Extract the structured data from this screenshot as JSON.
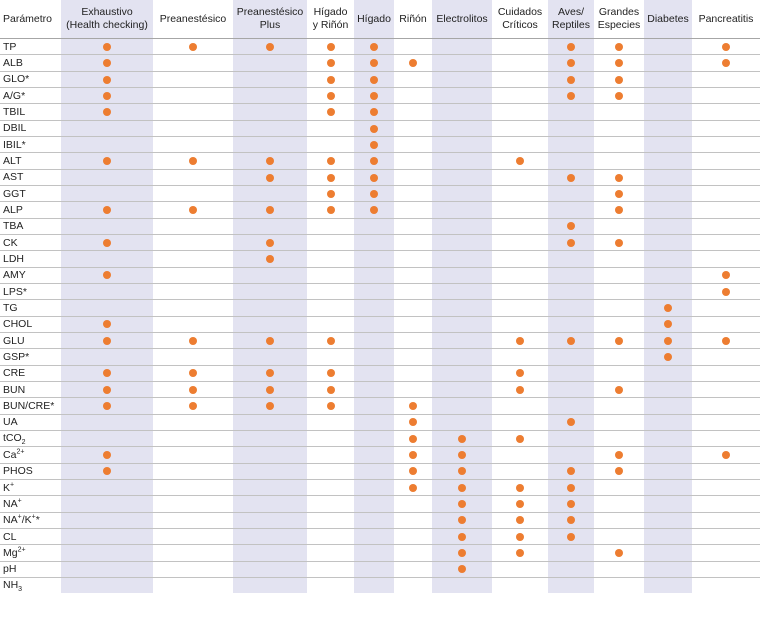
{
  "accent_color": "#ed7d31",
  "shade_color": "#e3e3f1",
  "row_header": "Parámetro",
  "columns": [
    {
      "id": "exhaustivo",
      "lines": [
        "Exhaustivo",
        "(Health checking)"
      ]
    },
    {
      "id": "preanestesico",
      "lines": [
        "Preanestésico"
      ]
    },
    {
      "id": "preanestesico-plus",
      "lines": [
        "Preanestésico",
        "Plus"
      ]
    },
    {
      "id": "higado-rinon",
      "lines": [
        "Hígado",
        "y Riñón"
      ]
    },
    {
      "id": "higado",
      "lines": [
        "Hígado"
      ]
    },
    {
      "id": "rinon",
      "lines": [
        "Riñón"
      ]
    },
    {
      "id": "electrolitos",
      "lines": [
        "Electrolitos"
      ]
    },
    {
      "id": "cuidados-criticos",
      "lines": [
        "Cuidados",
        "Críticos"
      ]
    },
    {
      "id": "aves-reptiles",
      "lines": [
        "Aves/",
        "Reptiles"
      ]
    },
    {
      "id": "grandes-especies",
      "lines": [
        "Grandes",
        "Especies"
      ]
    },
    {
      "id": "diabetes",
      "lines": [
        "Diabetes"
      ]
    },
    {
      "id": "pancreatitis",
      "lines": [
        "Pancreatitis"
      ]
    }
  ],
  "rows": [
    {
      "label": "TP",
      "base": "TP",
      "marks": [
        1,
        1,
        1,
        1,
        1,
        0,
        0,
        0,
        1,
        1,
        0,
        1
      ]
    },
    {
      "label": "ALB",
      "base": "ALB",
      "marks": [
        1,
        0,
        0,
        1,
        1,
        1,
        0,
        0,
        1,
        1,
        0,
        1
      ]
    },
    {
      "label": "GLO*",
      "base": "GLO*",
      "marks": [
        1,
        0,
        0,
        1,
        1,
        0,
        0,
        0,
        1,
        1,
        0,
        0
      ]
    },
    {
      "label": "A/G*",
      "base": "A/G*",
      "marks": [
        1,
        0,
        0,
        1,
        1,
        0,
        0,
        0,
        1,
        1,
        0,
        0
      ]
    },
    {
      "label": "TBIL",
      "base": "TBIL",
      "marks": [
        1,
        0,
        0,
        1,
        1,
        0,
        0,
        0,
        0,
        0,
        0,
        0
      ]
    },
    {
      "label": "DBIL",
      "base": "DBIL",
      "marks": [
        0,
        0,
        0,
        0,
        1,
        0,
        0,
        0,
        0,
        0,
        0,
        0
      ]
    },
    {
      "label": "IBIL*",
      "base": "IBIL*",
      "marks": [
        0,
        0,
        0,
        0,
        1,
        0,
        0,
        0,
        0,
        0,
        0,
        0
      ]
    },
    {
      "label": "ALT",
      "base": "ALT",
      "marks": [
        1,
        1,
        1,
        1,
        1,
        0,
        0,
        1,
        0,
        0,
        0,
        0
      ]
    },
    {
      "label": "AST",
      "base": "AST",
      "marks": [
        0,
        0,
        1,
        1,
        1,
        0,
        0,
        0,
        1,
        1,
        0,
        0
      ]
    },
    {
      "label": "GGT",
      "base": "GGT",
      "marks": [
        0,
        0,
        0,
        1,
        1,
        0,
        0,
        0,
        0,
        1,
        0,
        0
      ]
    },
    {
      "label": "ALP",
      "base": "ALP",
      "marks": [
        1,
        1,
        1,
        1,
        1,
        0,
        0,
        0,
        0,
        1,
        0,
        0
      ]
    },
    {
      "label": "TBA",
      "base": "TBA",
      "marks": [
        0,
        0,
        0,
        0,
        0,
        0,
        0,
        0,
        1,
        0,
        0,
        0
      ]
    },
    {
      "label": "CK",
      "base": "CK",
      "marks": [
        1,
        0,
        1,
        0,
        0,
        0,
        0,
        0,
        1,
        1,
        0,
        0
      ]
    },
    {
      "label": "LDH",
      "base": "LDH",
      "marks": [
        0,
        0,
        1,
        0,
        0,
        0,
        0,
        0,
        0,
        0,
        0,
        0
      ]
    },
    {
      "label": "AMY",
      "base": "AMY",
      "marks": [
        1,
        0,
        0,
        0,
        0,
        0,
        0,
        0,
        0,
        0,
        0,
        1
      ]
    },
    {
      "label": "LPS*",
      "base": "LPS*",
      "marks": [
        0,
        0,
        0,
        0,
        0,
        0,
        0,
        0,
        0,
        0,
        0,
        1
      ]
    },
    {
      "label": "TG",
      "base": "TG",
      "marks": [
        0,
        0,
        0,
        0,
        0,
        0,
        0,
        0,
        0,
        0,
        1,
        0
      ]
    },
    {
      "label": "CHOL",
      "base": "CHOL",
      "marks": [
        1,
        0,
        0,
        0,
        0,
        0,
        0,
        0,
        0,
        0,
        1,
        0
      ]
    },
    {
      "label": "GLU",
      "base": "GLU",
      "marks": [
        1,
        1,
        1,
        1,
        0,
        0,
        0,
        1,
        1,
        1,
        1,
        1
      ]
    },
    {
      "label": "GSP*",
      "base": "GSP*",
      "marks": [
        0,
        0,
        0,
        0,
        0,
        0,
        0,
        0,
        0,
        0,
        1,
        0
      ]
    },
    {
      "label": "CRE",
      "base": "CRE",
      "marks": [
        1,
        1,
        1,
        1,
        0,
        0,
        0,
        1,
        0,
        0,
        0,
        0
      ]
    },
    {
      "label": "BUN",
      "base": "BUN",
      "marks": [
        1,
        1,
        1,
        1,
        0,
        0,
        0,
        1,
        0,
        1,
        0,
        0
      ]
    },
    {
      "label": "BUN/CRE*",
      "base": "BUN/CRE*",
      "marks": [
        1,
        1,
        1,
        1,
        0,
        1,
        0,
        0,
        0,
        0,
        0,
        0
      ]
    },
    {
      "label": "UA",
      "base": "UA",
      "marks": [
        0,
        0,
        0,
        0,
        0,
        1,
        0,
        0,
        1,
        0,
        0,
        0
      ]
    },
    {
      "label": "tCO2",
      "base": "tCO",
      "sub": "2",
      "marks": [
        0,
        0,
        0,
        0,
        0,
        1,
        1,
        1,
        0,
        0,
        0,
        0
      ]
    },
    {
      "label": "Ca2+",
      "base": "Ca",
      "sup": "2+",
      "marks": [
        1,
        0,
        0,
        0,
        0,
        1,
        1,
        0,
        0,
        1,
        0,
        1
      ]
    },
    {
      "label": "PHOS",
      "base": "PHOS",
      "marks": [
        1,
        0,
        0,
        0,
        0,
        1,
        1,
        0,
        1,
        1,
        0,
        0
      ]
    },
    {
      "label": "K+",
      "base": "K",
      "sup": "+",
      "marks": [
        0,
        0,
        0,
        0,
        0,
        1,
        1,
        1,
        1,
        0,
        0,
        0
      ]
    },
    {
      "label": "NA+",
      "base": "NA",
      "sup": "+",
      "marks": [
        0,
        0,
        0,
        0,
        0,
        0,
        1,
        1,
        1,
        0,
        0,
        0
      ]
    },
    {
      "label": "NA+/K+*",
      "base": "NA",
      "sup": "+",
      "base2": "/K",
      "sup2": "+",
      "tail": "*",
      "marks": [
        0,
        0,
        0,
        0,
        0,
        0,
        1,
        1,
        1,
        0,
        0,
        0
      ]
    },
    {
      "label": "CL",
      "base": "CL",
      "marks": [
        0,
        0,
        0,
        0,
        0,
        0,
        1,
        1,
        1,
        0,
        0,
        0
      ]
    },
    {
      "label": "Mg2+",
      "base": "Mg",
      "sup": "2+",
      "marks": [
        0,
        0,
        0,
        0,
        0,
        0,
        1,
        1,
        0,
        1,
        0,
        0
      ]
    },
    {
      "label": "pH",
      "base": "pH",
      "marks": [
        0,
        0,
        0,
        0,
        0,
        0,
        1,
        0,
        0,
        0,
        0,
        0
      ]
    },
    {
      "label": "NH3",
      "base": "NH",
      "sub": "3",
      "marks": [
        0,
        0,
        0,
        0,
        0,
        0,
        0,
        0,
        0,
        0,
        0,
        0
      ]
    }
  ]
}
